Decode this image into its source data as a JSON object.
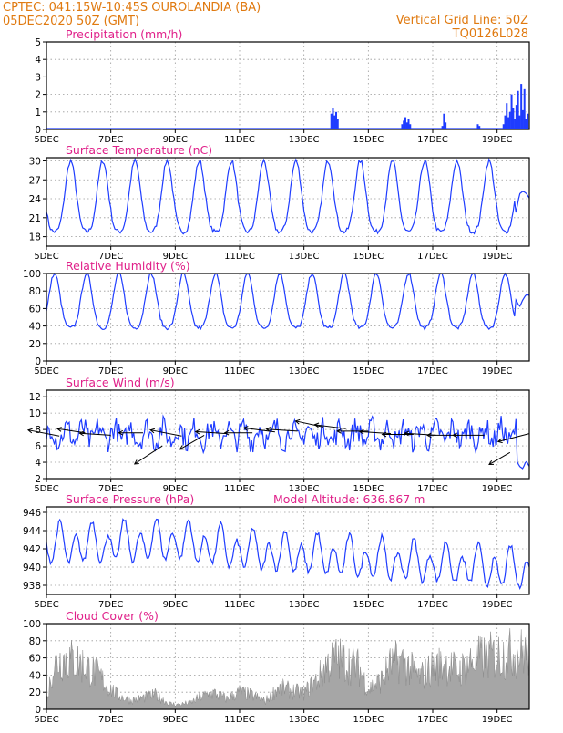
{
  "header": {
    "line1_left": "CPTEC:   041:15W-10:45S   OUROLANDIA (BA)",
    "line2_left": "05DEC2020 50Z (GMT)",
    "line1_right": "Vertical Grid Line: 50Z",
    "line2_right": "TQ0126L028"
  },
  "colors": {
    "header": "#e07a10",
    "panel_title": "#e0218a",
    "series_line": "#1e3cff",
    "cloud_fill": "#a6a6a6",
    "frame": "#000000"
  },
  "x_axis": {
    "labels": [
      "5DEC",
      "7DEC",
      "9DEC",
      "11DEC",
      "13DEC",
      "15DEC",
      "17DEC",
      "19DEC"
    ],
    "label_days": [
      5,
      7,
      9,
      11,
      13,
      15,
      17,
      19
    ],
    "range_days": [
      5,
      20
    ],
    "grid": "dotted"
  },
  "chart_data": [
    {
      "id": "precip",
      "type": "bar",
      "title": "Precipitation (mm/h)",
      "ylim": [
        0,
        5
      ],
      "yticks": [
        0,
        1,
        2,
        3,
        4,
        5
      ],
      "bars": [
        [
          13.85,
          0.9
        ],
        [
          13.9,
          1.2
        ],
        [
          13.95,
          0.8
        ],
        [
          14.0,
          1.0
        ],
        [
          14.05,
          0.6
        ],
        [
          16.05,
          0.3
        ],
        [
          16.1,
          0.5
        ],
        [
          16.15,
          0.7
        ],
        [
          16.2,
          0.4
        ],
        [
          16.25,
          0.6
        ],
        [
          16.3,
          0.3
        ],
        [
          17.3,
          0.2
        ],
        [
          17.35,
          0.9
        ],
        [
          17.4,
          0.4
        ],
        [
          18.4,
          0.3
        ],
        [
          18.45,
          0.2
        ],
        [
          19.2,
          0.3
        ],
        [
          19.25,
          0.8
        ],
        [
          19.3,
          1.5
        ],
        [
          19.35,
          0.7
        ],
        [
          19.4,
          1.0
        ],
        [
          19.45,
          2.0
        ],
        [
          19.5,
          1.2
        ],
        [
          19.55,
          0.6
        ],
        [
          19.6,
          1.4
        ],
        [
          19.65,
          2.2
        ],
        [
          19.7,
          0.8
        ],
        [
          19.75,
          2.6
        ],
        [
          19.8,
          1.1
        ],
        [
          19.85,
          2.3
        ],
        [
          19.9,
          0.6
        ],
        [
          19.95,
          0.9
        ]
      ]
    },
    {
      "id": "temp",
      "type": "line",
      "title": "Surface Temperature (nC)",
      "ylim": [
        16.5,
        30.5
      ],
      "yticks": [
        18,
        21,
        24,
        27,
        30
      ],
      "model": {
        "base": 23.3,
        "amp": 6.1,
        "peak_hour": 18
      },
      "tail": [
        [
          19.55,
          21.0
        ],
        [
          19.7,
          24.8
        ],
        [
          19.8,
          25.2
        ],
        [
          19.9,
          24.9
        ],
        [
          20.0,
          24.1
        ]
      ]
    },
    {
      "id": "rh",
      "type": "line",
      "title": "Relative Humidity (%)",
      "ylim": [
        0,
        100
      ],
      "yticks": [
        0,
        20,
        40,
        60,
        80,
        100
      ],
      "model": {
        "base": 63,
        "amp": 34,
        "peak_hour": 6
      },
      "tail": [
        [
          19.55,
          72
        ],
        [
          19.7,
          62
        ],
        [
          19.8,
          70
        ],
        [
          19.9,
          76
        ],
        [
          20.0,
          75
        ]
      ]
    },
    {
      "id": "wind",
      "type": "line",
      "title": "Surface Wind (m/s)",
      "ylim": [
        2,
        12.8
      ],
      "yticks": [
        2,
        4,
        6,
        8,
        10,
        12
      ],
      "model": {
        "base": 7.4,
        "amp": 0.9,
        "noise": 1.4
      },
      "tail": [
        [
          19.6,
          4.2
        ],
        [
          19.7,
          3.5
        ],
        [
          19.8,
          3.2
        ],
        [
          19.9,
          4.2
        ],
        [
          20.0,
          3.5
        ]
      ],
      "arrows": [
        [
          5.4,
          7.2,
          -0.9,
          0.3
        ],
        [
          6.2,
          7.6,
          -0.8,
          0.2
        ],
        [
          7.0,
          7.3,
          -0.9,
          0.1
        ],
        [
          8.0,
          7.6,
          -0.7,
          0.0
        ],
        [
          8.6,
          6.0,
          -0.8,
          -0.9
        ],
        [
          9.2,
          7.2,
          -0.9,
          0.3
        ],
        [
          9.9,
          7.3,
          -0.7,
          -0.7
        ],
        [
          10.6,
          7.5,
          -0.9,
          0.1
        ],
        [
          11.4,
          7.6,
          -0.8,
          0.0
        ],
        [
          12.1,
          7.7,
          -0.9,
          0.2
        ],
        [
          12.8,
          7.8,
          -0.9,
          0.1
        ],
        [
          13.6,
          8.3,
          -0.8,
          0.3
        ],
        [
          14.3,
          8.1,
          -0.9,
          0.2
        ],
        [
          15.0,
          7.8,
          -0.9,
          0.0
        ],
        [
          15.7,
          7.5,
          -0.9,
          0.1
        ],
        [
          16.4,
          7.4,
          -0.9,
          0.0
        ],
        [
          17.1,
          7.3,
          -0.9,
          0.1
        ],
        [
          17.8,
          7.3,
          -0.9,
          0.0
        ],
        [
          18.6,
          7.3,
          -0.9,
          0.0
        ],
        [
          19.4,
          5.2,
          -0.6,
          -0.6
        ],
        [
          20.0,
          7.5,
          -0.9,
          -0.4
        ]
      ]
    },
    {
      "id": "pressure",
      "type": "line",
      "title": "Surface Pressure (hPa)",
      "annotation": "Model Altitude: 636.867 m",
      "ylim": [
        937,
        946.6
      ],
      "yticks": [
        938,
        940,
        942,
        944,
        946
      ],
      "trend": [
        [
          5,
          942.3
        ],
        [
          9,
          942.8
        ],
        [
          11,
          941.8
        ],
        [
          15,
          940.8
        ],
        [
          20,
          939.6
        ]
      ],
      "model": {
        "semi_amp": 1.8,
        "diurnal_amp": 0.8
      }
    },
    {
      "id": "cloud",
      "type": "area",
      "title": "Cloud Cover (%)",
      "ylim": [
        0,
        100
      ],
      "yticks": [
        0,
        20,
        40,
        60,
        80,
        100
      ],
      "envelope": [
        [
          5.0,
          10
        ],
        [
          5.2,
          75
        ],
        [
          5.5,
          88
        ],
        [
          6.0,
          82
        ],
        [
          6.3,
          70
        ],
        [
          6.6,
          60
        ],
        [
          6.9,
          40
        ],
        [
          7.2,
          25
        ],
        [
          7.6,
          15
        ],
        [
          8.0,
          20
        ],
        [
          8.4,
          25
        ],
        [
          8.8,
          10
        ],
        [
          9.1,
          8
        ],
        [
          9.5,
          12
        ],
        [
          9.8,
          22
        ],
        [
          10.2,
          28
        ],
        [
          10.6,
          18
        ],
        [
          11.0,
          30
        ],
        [
          11.4,
          24
        ],
        [
          11.8,
          14
        ],
        [
          12.2,
          38
        ],
        [
          12.6,
          32
        ],
        [
          13.0,
          28
        ],
        [
          13.4,
          50
        ],
        [
          13.7,
          76
        ],
        [
          14.0,
          88
        ],
        [
          14.4,
          80
        ],
        [
          14.7,
          72
        ],
        [
          15.0,
          35
        ],
        [
          15.4,
          50
        ],
        [
          15.7,
          78
        ],
        [
          16.0,
          84
        ],
        [
          16.3,
          70
        ],
        [
          16.6,
          55
        ],
        [
          17.0,
          72
        ],
        [
          17.4,
          78
        ],
        [
          17.8,
          65
        ],
        [
          18.2,
          82
        ],
        [
          18.6,
          90
        ],
        [
          19.0,
          93
        ],
        [
          19.4,
          96
        ],
        [
          19.8,
          98
        ],
        [
          20.0,
          99
        ]
      ]
    }
  ]
}
